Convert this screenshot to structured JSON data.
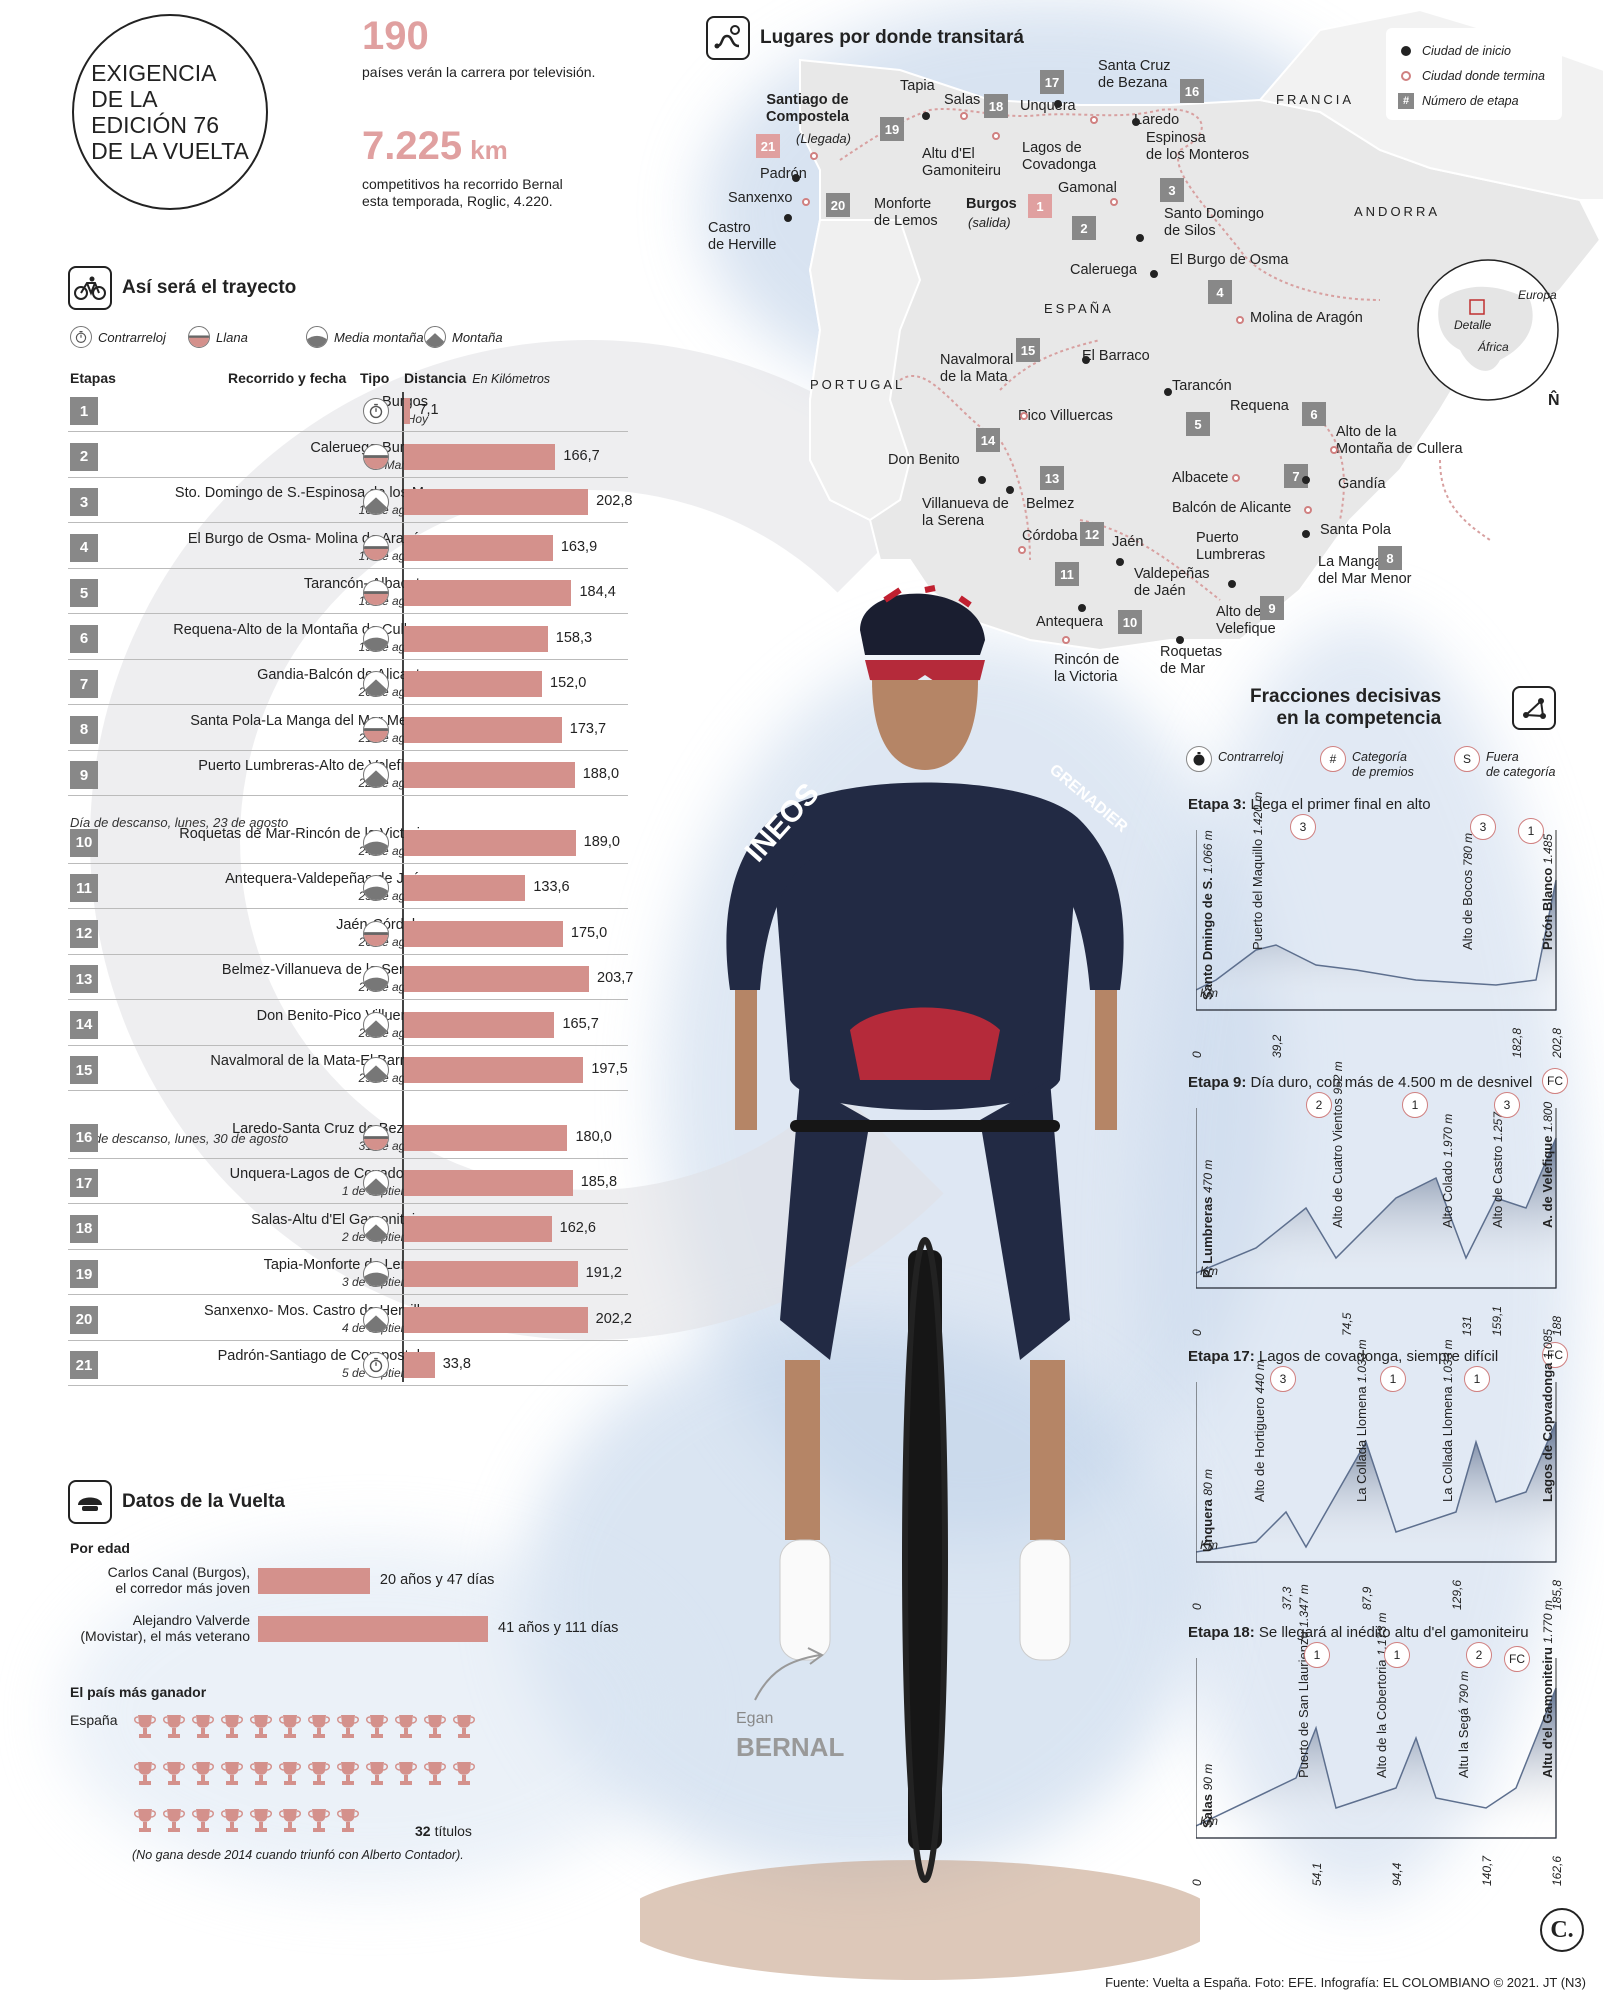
{
  "header": {
    "title": "EXIGENCIA\nDE LA\nEDICIÓN 76\nDE LA VUELTA",
    "stat1_value": "190",
    "stat1_text": "países verán la carrera por televisión.",
    "stat2_value": "7.225",
    "stat2_unit": "km",
    "stat2_text": "competitivos ha recorrido Bernal\nesta temporada, Roglic, 4.220."
  },
  "trayecto": {
    "title": "Así será el trayecto",
    "legend": [
      "Contrarreloj",
      "Llana",
      "Media montaña",
      "Montaña"
    ],
    "col_etapas": "Etapas",
    "col_recorrido": "Recorrido y fecha",
    "col_tipo": "Tipo",
    "col_distancia": "Distancia",
    "col_distancia_unit": "En Kilómetros",
    "rest1": "Día de descanso, lunes, 23 de agosto",
    "rest2": "Día de descanso, lunes, 30 de agosto"
  },
  "chart_data": {
    "type": "bar",
    "categories": [
      "1",
      "2",
      "3",
      "4",
      "5",
      "6",
      "7",
      "8",
      "9",
      "10",
      "11",
      "12",
      "13",
      "14",
      "15",
      "16",
      "17",
      "18",
      "19",
      "20",
      "21"
    ],
    "routes": [
      "Burgos",
      "Caleruega-Burgos",
      "Sto. Domingo de S.-Espinosa de los M.",
      "El Burgo de Osma- Molina de Aragón",
      "Tarancón- Albacete",
      "Requena-Alto de la Montaña de Cullera",
      "Gandia-Balcón de Alicante",
      "Santa Pola-La Manga del Mar Menor",
      "Puerto Lumbreras-Alto de Velefique",
      "Roquetas de Mar-Rincón de la Victoria",
      "Antequera-Valdepeñas de Jaén",
      "Jaén-Córdoba",
      "Belmez-Villanueva de la Serena",
      "Don Benito-Pico Villuercas",
      "Navalmoral de la Mata-El Barraco",
      "Laredo-Santa Cruz de Bezana",
      "Unquera-Lagos de Covadonga",
      "Salas-Altu d'El Gamoniteiru",
      "Tapia-Monforte de Lemos",
      "Sanxenxo- Mos. Castro de Herville",
      "Padrón-Santiago de Compostela"
    ],
    "dates": [
      "Hoy",
      "Mañana",
      "16 de agosto",
      "17 de agosto",
      "18 de agosto",
      "19 de agosto",
      "20 de agosto",
      "21 de agosto",
      "22 de agosto",
      "24 de agosto",
      "25 de agosto",
      "26 de agosto",
      "27 de agosto",
      "28 de agosto",
      "29 de agosto",
      "31 de agosto",
      "1 de septiembre",
      "2 de septiembre",
      "3 de septiembre",
      "4 de septiembre",
      "5 de septiembre"
    ],
    "types": [
      "contrarreloj",
      "llana",
      "montana",
      "llana",
      "llana",
      "media",
      "montana",
      "llana",
      "montana",
      "media",
      "media",
      "llana",
      "media",
      "montana",
      "montana",
      "llana",
      "montana",
      "montana",
      "media",
      "montana",
      "contrarreloj"
    ],
    "values": [
      7.1,
      166.7,
      202.8,
      163.9,
      184.4,
      158.3,
      152.0,
      173.7,
      188.0,
      189.0,
      133.6,
      175.0,
      203.7,
      165.7,
      197.5,
      180.0,
      185.8,
      162.6,
      191.2,
      202.2,
      33.8
    ],
    "labels": [
      "7,1",
      "166,7",
      "202,8",
      "163,9",
      "184,4",
      "158,3",
      "152,0",
      "173,7",
      "188,0",
      "189,0",
      "133,6",
      "175,0",
      "203,7",
      "165,7",
      "197,5",
      "180,0",
      "185,8",
      "162,6",
      "191,2",
      "202,2",
      "33,8"
    ]
  },
  "map": {
    "title": "Lugares por donde transitará",
    "legend": [
      "Ciudad de inicio",
      "Ciudad donde termina",
      "Número de etapa"
    ],
    "legend_hash": "#",
    "countries": [
      "FRANCIA",
      "ANDORRA",
      "ESPAÑA",
      "PORTUGAL"
    ],
    "globe": [
      "Europa",
      "Detalle",
      "África"
    ],
    "north": "N̂",
    "places": [
      {
        "t": "Santiago de\nCompostela",
        "b": true
      },
      {
        "t": "(Llegada)",
        "i": true
      },
      {
        "t": "Padrón"
      },
      {
        "t": "Sanxenxo"
      },
      {
        "t": "Castro\nde Herville"
      },
      {
        "t": "Tapia"
      },
      {
        "t": "Salas"
      },
      {
        "t": "Altu d'El\nGamoniteiru"
      },
      {
        "t": "Monforte\nde Lemos"
      },
      {
        "t": "Unquera"
      },
      {
        "t": "Lagos de\nCovadonga"
      },
      {
        "t": "Santa Cruz\nde Bezana"
      },
      {
        "t": "Laredo"
      },
      {
        "t": "Espinosa\nde los Monteros"
      },
      {
        "t": "Gamonal"
      },
      {
        "t": "Burgos",
        "b": true
      },
      {
        "t": "(salida)",
        "i": true
      },
      {
        "t": "Santo Domingo\nde Silos"
      },
      {
        "t": "Caleruega"
      },
      {
        "t": "El Burgo de Osma"
      },
      {
        "t": "Molina de Aragón"
      },
      {
        "t": "El Barraco"
      },
      {
        "t": "Navalmoral\nde la Mata"
      },
      {
        "t": "Tarancón"
      },
      {
        "t": "Requena"
      },
      {
        "t": "Pico Villuercas"
      },
      {
        "t": "Alto de la\nMontaña de Cullera"
      },
      {
        "t": "Don Benito"
      },
      {
        "t": "Villanueva de\nla Serena"
      },
      {
        "t": "Gandía"
      },
      {
        "t": "Albacete"
      },
      {
        "t": "Belmez"
      },
      {
        "t": "Balcón de Alicante"
      },
      {
        "t": "Córdoba"
      },
      {
        "t": "Jaén"
      },
      {
        "t": "Puerto\nLumbreras"
      },
      {
        "t": "Santa Pola"
      },
      {
        "t": "La Manga\ndel Mar Menor"
      },
      {
        "t": "Valdepeñas\nde Jaén"
      },
      {
        "t": "Antequera"
      },
      {
        "t": "Alto de\nVelefique"
      },
      {
        "t": "Rincón de\nla Victoria"
      },
      {
        "t": "Roquetas\nde Mar"
      }
    ],
    "stage_nums": [
      "1",
      "2",
      "3",
      "4",
      "5",
      "6",
      "7",
      "8",
      "9",
      "10",
      "11",
      "12",
      "13",
      "14",
      "15",
      "16",
      "17",
      "18",
      "19",
      "20",
      "21"
    ]
  },
  "fracciones": {
    "title": "Fracciones decisivas\nen la competencia",
    "legend": [
      "Contrarreloj",
      "Categoría\nde premios",
      "Fuera\nde categoría"
    ],
    "legend_hash": "#",
    "legend_s": "S",
    "profiles": [
      {
        "stage": "Etapa 3:",
        "desc": "Llega el primer final en alto",
        "start": "Santo Dmingo de S.",
        "start_alt": "1.066 m",
        "end": "Picón Blanco",
        "end_alt": "1.485",
        "peaks": [
          {
            "n": "Puerto\ndel Maquillo",
            "a": "1.420 m",
            "c": "3"
          },
          {
            "n": "Alto de\nBocos",
            "a": "780 m",
            "c": "3"
          }
        ],
        "endcat": "1",
        "km": [
          "0",
          "39,2",
          "182,8",
          "202,8"
        ]
      },
      {
        "stage": "Etapa 9:",
        "desc": "Día duro, con más de 4.500 m de desnivel",
        "fc": "FC",
        "start": "P. Lumbreras",
        "start_alt": "470 m",
        "end": "A. de Velefique",
        "end_alt": "1.800",
        "peaks": [
          {
            "n": "Alto de Cuatro\nVientos",
            "a": "952 m",
            "c": "2"
          },
          {
            "n": "Alto Colado",
            "a": "1.970 m",
            "c": "1"
          },
          {
            "n": "Alto de\nCastro",
            "a": "1.257 m",
            "c": "3"
          }
        ],
        "km": [
          "0",
          "74,5",
          "131",
          "159,1",
          "188"
        ]
      },
      {
        "stage": "Etapa 17:",
        "desc": "Lagos de covadonga, siempre difícil",
        "fc": "FC",
        "start": "Unquera",
        "start_alt": "80 m",
        "end": "Lagos de Copvadonga",
        "end_alt": "1.085",
        "peaks": [
          {
            "n": "Alto de Hortiguero",
            "a": "440 m",
            "c": "3"
          },
          {
            "n": "La Collada Llomena",
            "a": "1.033 m",
            "c": "1"
          },
          {
            "n": "La Collada Llomena",
            "a": "1.033 m",
            "c": "1"
          }
        ],
        "km": [
          "0",
          "37,3",
          "87,9",
          "129,6",
          "185,8"
        ]
      },
      {
        "stage": "Etapa 18:",
        "desc": "Se llegará al inédito altu d'el gamoniteiru",
        "start": "Salas",
        "start_alt": "90 m",
        "end": "Altu d'el\nGamoniteiru",
        "end_alt": "1.770 m",
        "peaks": [
          {
            "n": "Puerto de San\nLlaurienzu",
            "a": "1.347 m",
            "c": "1"
          },
          {
            "n": "Alto de la\nCobertoria",
            "a": "1.173 m",
            "c": "1"
          },
          {
            "n": "Altu la Segá",
            "a": "790 m",
            "c": "2"
          }
        ],
        "endcat": "FC",
        "km": [
          "0",
          "54,1",
          "94,4",
          "140,7",
          "162,6"
        ]
      }
    ],
    "km_label": "Km"
  },
  "datos": {
    "title": "Datos de la Vuelta",
    "edad_title": "Por edad",
    "ages": [
      {
        "who": "Carlos Canal (Burgos),\nel corredor más joven",
        "value": "20 años y 47 días",
        "years": 20.1
      },
      {
        "who": "Alejandro Valverde\n(Movistar), el más veterano",
        "value": "41 años y 111 días",
        "years": 41.3
      }
    ],
    "pais_title": "El país más ganador",
    "pais": "España",
    "titulos": 32,
    "titulos_label": "títulos",
    "note": "(No gana desde 2014 cuando triunfó con Alberto Contador)."
  },
  "rider": {
    "first": "Egan",
    "last": "BERNAL",
    "jersey": "INEOS",
    "jersey2": "GRENADIER"
  },
  "footer": "Fuente: Vuelta a España. Foto: EFE. Infografía: EL COLOMBIANO © 2021. JT (N3)",
  "logo": "C."
}
